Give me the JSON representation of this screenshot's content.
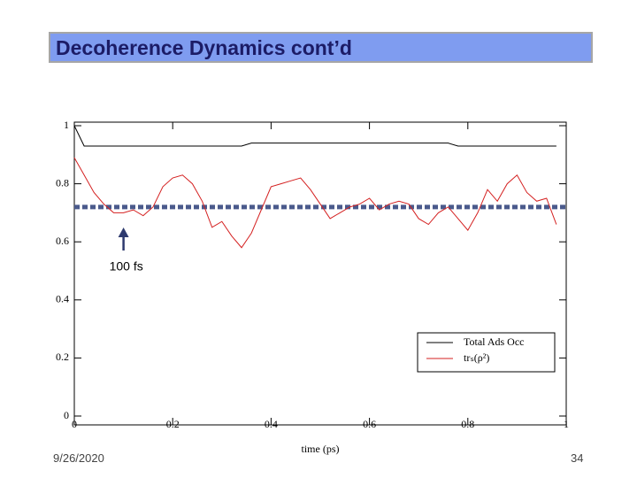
{
  "slide": {
    "title": "Decoherence Dynamics cont’d",
    "date": "9/26/2020",
    "page": "34"
  },
  "chart_data": {
    "type": "line",
    "x_label": "time (ps)",
    "x": [
      0,
      0.02,
      0.04,
      0.06,
      0.08,
      0.1,
      0.12,
      0.14,
      0.16,
      0.18,
      0.2,
      0.22,
      0.24,
      0.26,
      0.28,
      0.3,
      0.32,
      0.34,
      0.36,
      0.38,
      0.4,
      0.42,
      0.44,
      0.46,
      0.48,
      0.5,
      0.52,
      0.54,
      0.56,
      0.58,
      0.6,
      0.62,
      0.64,
      0.66,
      0.68,
      0.7,
      0.72,
      0.74,
      0.76,
      0.78,
      0.8,
      0.82,
      0.84,
      0.86,
      0.88,
      0.9,
      0.92,
      0.94,
      0.96,
      0.98
    ],
    "series": [
      {
        "name": "Total Ads Occ",
        "color": "#000000",
        "values": [
          1.0,
          0.93,
          0.93,
          0.93,
          0.93,
          0.93,
          0.93,
          0.93,
          0.93,
          0.93,
          0.93,
          0.93,
          0.93,
          0.93,
          0.93,
          0.93,
          0.93,
          0.93,
          0.94,
          0.94,
          0.94,
          0.94,
          0.94,
          0.94,
          0.94,
          0.94,
          0.94,
          0.94,
          0.94,
          0.94,
          0.94,
          0.94,
          0.94,
          0.94,
          0.94,
          0.94,
          0.94,
          0.94,
          0.94,
          0.93,
          0.93,
          0.93,
          0.93,
          0.93,
          0.93,
          0.93,
          0.93,
          0.93,
          0.93,
          0.93
        ]
      },
      {
        "name": "trₛ(ρ²)",
        "color": "#d42020",
        "values": [
          0.89,
          0.83,
          0.77,
          0.73,
          0.7,
          0.7,
          0.71,
          0.69,
          0.72,
          0.79,
          0.82,
          0.83,
          0.8,
          0.74,
          0.65,
          0.67,
          0.62,
          0.58,
          0.63,
          0.71,
          0.79,
          0.8,
          0.81,
          0.82,
          0.78,
          0.73,
          0.68,
          0.7,
          0.72,
          0.73,
          0.75,
          0.71,
          0.73,
          0.74,
          0.73,
          0.68,
          0.66,
          0.7,
          0.72,
          0.68,
          0.64,
          0.7,
          0.78,
          0.74,
          0.8,
          0.83,
          0.77,
          0.74,
          0.75,
          0.66
        ]
      }
    ],
    "reference_line": {
      "value": 0.72,
      "color": "#4a5a8c"
    },
    "annotation": {
      "text": "100 fs",
      "x": 0.1,
      "color": "#2e3a6e"
    },
    "xlim": [
      0,
      1
    ],
    "ylim": [
      0,
      1
    ],
    "xticks": [
      0,
      0.2,
      0.4,
      0.6,
      0.8,
      1
    ],
    "yticks": [
      0,
      0.2,
      0.4,
      0.6,
      0.8,
      1
    ],
    "grid": false,
    "legend": "lower right"
  }
}
